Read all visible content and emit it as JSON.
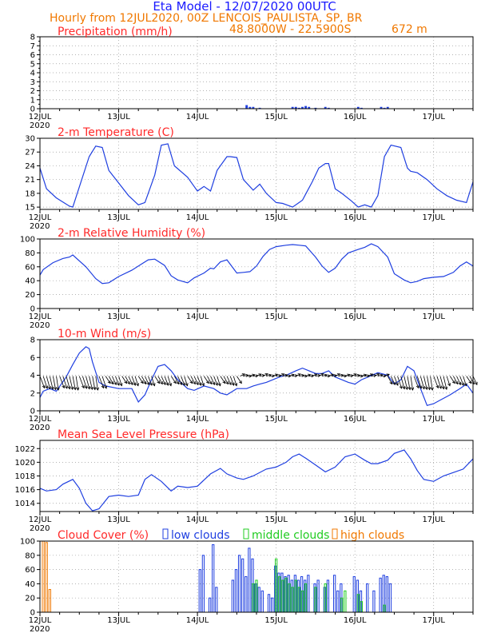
{
  "header": {
    "title": "Eta Model - 12/07/2020 00UTC",
    "subtitle": "Hourly from 12JUL2020, 00Z  LENCOIS_PAULISTA, SP, BR",
    "coords": "48.8000W - 22.5900S",
    "elevation": "672  m"
  },
  "colors": {
    "title": "#1a1aff",
    "orange": "#f07800",
    "panel_title": "#ff2a2a",
    "series": "#1f3fe0",
    "low_clouds": "#1f3fe0",
    "middle_clouds": "#22cc22",
    "high_clouds": "#f07800",
    "wind_arrows": "#000000"
  },
  "axis": {
    "day_labels": [
      "12JUL",
      "13JUL",
      "14JUL",
      "15JUL",
      "16JUL",
      "17JUL"
    ],
    "year_label": "2020",
    "hours_total": 132
  },
  "chart_data": [
    {
      "type": "bar",
      "title": "Precipitation (mm/h)",
      "ylim": [
        0,
        8
      ],
      "yticks": [
        "0",
        "1",
        "2",
        "3",
        "4",
        "5",
        "6",
        "7",
        "8"
      ],
      "x_hours": [
        63,
        64,
        65,
        67,
        77,
        78,
        79,
        80,
        81,
        82,
        84,
        87,
        88,
        97,
        98,
        104,
        105,
        106
      ],
      "values": [
        0.4,
        0.2,
        0.2,
        0.1,
        0.2,
        0.2,
        0.1,
        0.2,
        0.3,
        0.2,
        0.1,
        0.2,
        0.1,
        0.2,
        0.1,
        0.2,
        0.1,
        0.2
      ]
    },
    {
      "type": "line",
      "title": "2-m Temperature (C)",
      "ylim": [
        14.5,
        30
      ],
      "yticks": [
        "15",
        "18",
        "21",
        "24",
        "27",
        "30"
      ],
      "x_hours": [
        0,
        2,
        5,
        9,
        10,
        15,
        17,
        19,
        21,
        27,
        30,
        32,
        35,
        37,
        39,
        41,
        45,
        47,
        48,
        50,
        52,
        54,
        57,
        58,
        60,
        62,
        65,
        67,
        69,
        72,
        74,
        77,
        80,
        83,
        85,
        87,
        88,
        90,
        92,
        95,
        97,
        99,
        101,
        103,
        105,
        107,
        110,
        112,
        113,
        115,
        118,
        121,
        124,
        127,
        130,
        132
      ],
      "values": [
        23.5,
        19,
        17,
        15.2,
        15,
        26,
        28.3,
        28,
        23,
        17.5,
        15.5,
        16,
        22,
        28.5,
        28.8,
        24,
        21.5,
        19.5,
        18.5,
        19.5,
        18.5,
        23,
        26,
        26,
        25.8,
        21,
        18.7,
        20,
        18,
        16,
        15.8,
        15,
        16.5,
        20.5,
        23.5,
        24.5,
        24.5,
        19,
        18,
        16.3,
        15,
        15.5,
        15,
        17.5,
        26,
        28.5,
        28,
        23.5,
        22.8,
        22.5,
        21,
        19,
        17.5,
        16.5,
        16,
        20.5
      ]
    },
    {
      "type": "line",
      "title": "2-m Relative Humidity (%)",
      "ylim": [
        0,
        100
      ],
      "yticks": [
        "0",
        "20",
        "40",
        "60",
        "80",
        "100"
      ],
      "x_hours": [
        0,
        1,
        4,
        7,
        9,
        10,
        14,
        17,
        19,
        21,
        24,
        28,
        31,
        33,
        35,
        38,
        40,
        42,
        45,
        47,
        50,
        52,
        53,
        55,
        57,
        60,
        62,
        64,
        66,
        68,
        70,
        72,
        75,
        77,
        79,
        81,
        84,
        86,
        88,
        90,
        92,
        94,
        97,
        99,
        101,
        103,
        106,
        108,
        111,
        113,
        115,
        117,
        120,
        123,
        126,
        128,
        130,
        132
      ],
      "values": [
        48,
        56,
        66,
        72,
        74,
        77,
        60,
        43,
        36,
        37,
        46,
        55,
        64,
        70,
        71,
        62,
        47,
        41,
        37,
        44,
        51,
        58,
        57,
        67,
        70,
        51,
        52,
        53,
        61,
        75,
        85,
        89,
        91,
        92,
        91,
        90,
        74,
        61,
        52,
        58,
        71,
        80,
        85,
        88,
        93,
        89,
        74,
        50,
        41,
        37,
        39,
        43,
        45,
        46,
        52,
        61,
        67,
        61
      ]
    },
    {
      "type": "line",
      "title": "10-m Wind (m/s)",
      "ylim": [
        0,
        8
      ],
      "yticks": [
        "0",
        "2",
        "4",
        "6",
        "8"
      ],
      "x_hours": [
        0,
        1,
        3,
        5,
        8,
        10,
        12,
        14,
        15,
        16,
        18,
        20,
        24,
        28,
        30,
        32,
        34,
        36,
        38,
        40,
        42,
        45,
        47,
        50,
        53,
        55,
        57,
        60,
        63,
        65,
        67,
        69,
        71,
        73,
        75,
        78,
        80,
        82,
        84,
        86,
        88,
        90,
        92,
        94,
        96,
        98,
        100,
        103,
        106,
        108,
        110,
        112,
        114,
        116,
        118,
        120,
        122,
        125,
        128,
        130,
        132
      ],
      "values": [
        1.5,
        2.2,
        2.5,
        2.2,
        3.8,
        5.2,
        6.5,
        7.2,
        7.0,
        5.5,
        3.2,
        2.8,
        2.5,
        2.5,
        1.0,
        1.8,
        3.5,
        5.0,
        5.2,
        4.5,
        3.5,
        2.5,
        2.3,
        2.8,
        2.5,
        2.0,
        1.8,
        2.5,
        2.5,
        2.8,
        3.0,
        3.2,
        3.5,
        3.8,
        4.0,
        4.5,
        4.8,
        4.5,
        4.2,
        4.2,
        4.5,
        3.8,
        3.5,
        3.2,
        3.0,
        3.5,
        3.8,
        4.3,
        4.0,
        3.0,
        3.5,
        5.0,
        4.5,
        2.5,
        0.6,
        0.8,
        1.2,
        1.8,
        2.5,
        3.0,
        2.0
      ]
    },
    {
      "type": "line",
      "title": "Mean Sea Level Pressure (hPa)",
      "ylim": [
        1012.8,
        1023.2
      ],
      "yticks": [
        "1014",
        "1016",
        "1018",
        "1020",
        "1022"
      ],
      "x_hours": [
        0,
        2,
        5,
        7,
        10,
        12,
        14,
        16,
        18,
        21,
        24,
        27,
        30,
        32,
        34,
        37,
        40,
        42,
        45,
        48,
        52,
        55,
        57,
        60,
        62,
        65,
        69,
        72,
        75,
        77,
        79,
        81,
        84,
        87,
        90,
        93,
        96,
        99,
        101,
        103,
        106,
        108,
        111,
        113,
        115,
        117,
        120,
        123,
        126,
        129,
        132
      ],
      "values": [
        1016.2,
        1015.8,
        1016.0,
        1016.8,
        1017.5,
        1016.2,
        1014.0,
        1012.9,
        1013.2,
        1015.0,
        1015.2,
        1015.0,
        1015.2,
        1017.5,
        1018.2,
        1017.2,
        1015.8,
        1016.5,
        1016.3,
        1016.5,
        1018.3,
        1019.1,
        1018.3,
        1017.7,
        1017.5,
        1018.0,
        1019.0,
        1019.3,
        1020.0,
        1020.8,
        1021.2,
        1020.6,
        1019.6,
        1018.6,
        1019.3,
        1020.8,
        1021.2,
        1020.3,
        1019.8,
        1019.8,
        1020.3,
        1021.3,
        1021.8,
        1020.5,
        1018.8,
        1017.5,
        1017.2,
        1018.0,
        1018.5,
        1019.0,
        1020.5
      ]
    },
    {
      "type": "bar",
      "title": "Cloud Cover (%)",
      "ylim": [
        0,
        100
      ],
      "yticks": [
        "0",
        "20",
        "40",
        "60",
        "80",
        "100"
      ],
      "legend": [
        "low clouds",
        "middle clouds",
        "high clouds"
      ],
      "series": [
        {
          "name": "low clouds",
          "x_hours": [
            49,
            50,
            52,
            53,
            54,
            59,
            60,
            61,
            62,
            63,
            64,
            65,
            66,
            67,
            68,
            70,
            71,
            72,
            73,
            74,
            75,
            76,
            77,
            78,
            79,
            80,
            81,
            82,
            84,
            85,
            87,
            88,
            90,
            91,
            92,
            96,
            97,
            98,
            100,
            102,
            104,
            105,
            106,
            107
          ],
          "values": [
            60,
            80,
            20,
            95,
            35,
            45,
            60,
            80,
            75,
            50,
            90,
            75,
            40,
            35,
            30,
            25,
            20,
            65,
            55,
            55,
            50,
            52,
            45,
            52,
            45,
            50,
            45,
            52,
            40,
            45,
            35,
            45,
            52,
            30,
            40,
            50,
            45,
            30,
            40,
            30,
            48,
            52,
            50,
            40
          ]
        },
        {
          "name": "middle clouds",
          "x_hours": [
            65,
            66,
            72,
            73,
            74,
            75,
            76,
            77,
            78,
            79,
            80,
            81,
            84,
            87,
            92,
            93,
            97,
            98,
            105
          ],
          "values": [
            40,
            45,
            75,
            50,
            45,
            48,
            40,
            35,
            45,
            35,
            30,
            40,
            35,
            40,
            20,
            30,
            25,
            15,
            10
          ]
        },
        {
          "name": "high clouds",
          "x_hours": [
            1,
            2,
            3
          ],
          "values": [
            100,
            98,
            32
          ]
        }
      ]
    }
  ]
}
